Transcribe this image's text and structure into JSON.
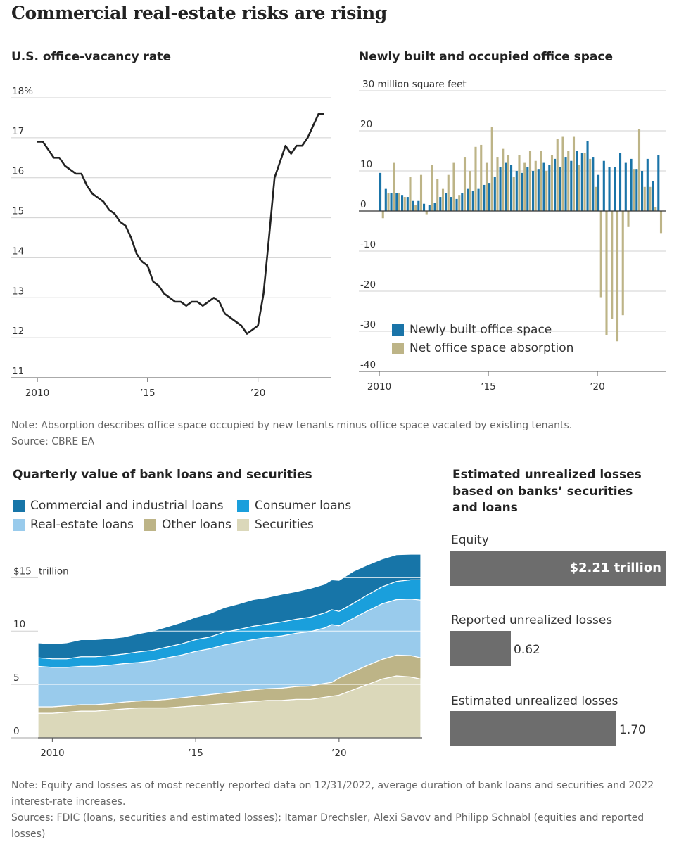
{
  "main_title": "Commercial real-estate risks are rising",
  "colors": {
    "line": "#222222",
    "built": "#1a74a8",
    "absorption": "#bdb487",
    "ci_loans": "#1775a8",
    "consumer_loans": "#1a9fdc",
    "real_estate_loans": "#99cbec",
    "other_loans": "#bdb487",
    "securities": "#dbd8ba",
    "loss_bar": "#6d6d6d",
    "grid": "#d0d0d0"
  },
  "note1": "Note: Absorption describes office space occupied by new tenants minus office space vacated by existing tenants.",
  "source1": "Source: CBRE EA",
  "note2": "Note: Equity and losses as of most recently reported data on 12/31/2022, average duration of bank loans and securities and 2022 interest-rate increases.",
  "source2": "Sources: FDIC (loans, securities and estimated losses); Itamar Drechsler, Alexi Savov and Philipp Schnabl (equities and reported losses)",
  "chart_data": [
    {
      "id": "vacancy",
      "type": "line",
      "title": "U.S. office-vacancy rate",
      "xlabel": "",
      "ylabel": "",
      "ylim": [
        11,
        18
      ],
      "xlim": [
        2010,
        2023.2
      ],
      "y_ticks": [
        11,
        12,
        13,
        14,
        15,
        16,
        17,
        18
      ],
      "y_tick_labels": [
        "11",
        "12",
        "13",
        "14",
        "15",
        "16",
        "17",
        "18%"
      ],
      "x_ticks": [
        2010,
        2015,
        2020
      ],
      "x_tick_labels": [
        "2010",
        "’15",
        "’20"
      ],
      "x": [
        2010,
        2010.25,
        2010.5,
        2010.75,
        2011,
        2011.25,
        2011.5,
        2011.75,
        2012,
        2012.25,
        2012.5,
        2012.75,
        2013,
        2013.25,
        2013.5,
        2013.75,
        2014,
        2014.25,
        2014.5,
        2014.75,
        2015,
        2015.25,
        2015.5,
        2015.75,
        2016,
        2016.25,
        2016.5,
        2016.75,
        2017,
        2017.25,
        2017.5,
        2017.75,
        2018,
        2018.25,
        2018.5,
        2018.75,
        2019,
        2019.25,
        2019.5,
        2019.75,
        2020,
        2020.25,
        2020.5,
        2020.75,
        2021,
        2021.25,
        2021.5,
        2021.75,
        2022,
        2022.25,
        2022.5,
        2022.75,
        2023
      ],
      "values": [
        16.9,
        16.9,
        16.7,
        16.5,
        16.5,
        16.3,
        16.2,
        16.1,
        16.1,
        15.8,
        15.6,
        15.5,
        15.4,
        15.2,
        15.1,
        14.9,
        14.8,
        14.5,
        14.1,
        13.9,
        13.8,
        13.4,
        13.3,
        13.1,
        13.0,
        12.9,
        12.9,
        12.8,
        12.9,
        12.9,
        12.8,
        12.9,
        13.0,
        12.9,
        12.6,
        12.5,
        12.4,
        12.3,
        12.1,
        12.2,
        12.3,
        13.1,
        14.5,
        16.0,
        16.4,
        16.8,
        16.6,
        16.8,
        16.8,
        17.0,
        17.3,
        17.6,
        17.6
      ]
    },
    {
      "id": "office-space",
      "type": "bar",
      "title": "Newly built and occupied office space",
      "unit_label": "30 million square feet",
      "ylim": [
        -40,
        30
      ],
      "y_ticks": [
        30,
        20,
        10,
        0,
        -10,
        -20,
        -30,
        -40
      ],
      "y_tick_labels": [
        "",
        "20",
        "10",
        "0",
        "-10",
        "-20",
        "-30",
        "-40"
      ],
      "x_ticks": [
        2010,
        2015,
        2020
      ],
      "x_tick_labels": [
        "2010",
        "’15",
        "’20"
      ],
      "quarters_start": 2010,
      "series": [
        {
          "name": "Newly built office space",
          "values": [
            9.5,
            5.5,
            4.5,
            4.5,
            4.0,
            3.5,
            2.5,
            2.5,
            1.8,
            1.5,
            2.0,
            3.5,
            4.5,
            3.5,
            3.0,
            4.5,
            5.5,
            5.0,
            5.5,
            6.5,
            7.0,
            8.5,
            11.0,
            12.0,
            11.5,
            10.0,
            9.5,
            11.0,
            10.0,
            10.5,
            12.0,
            11.5,
            13.0,
            11.0,
            13.5,
            12.5,
            15.0,
            14.5,
            17.5,
            13.5,
            9.0,
            12.5,
            11.0,
            11.0,
            14.5,
            12.0,
            13.0,
            10.5,
            10.0,
            13.0,
            7.5,
            14.0
          ]
        },
        {
          "name": "Net office space absorption",
          "values": [
            -1.8,
            4.5,
            12.0,
            4.5,
            3.5,
            8.5,
            1.5,
            9.0,
            -0.8,
            11.5,
            8.0,
            5.5,
            9.0,
            12.0,
            4.0,
            13.5,
            10.0,
            16.0,
            16.5,
            12.0,
            21.0,
            13.5,
            15.5,
            14.0,
            8.5,
            14.0,
            12.0,
            15.0,
            12.5,
            15.0,
            10.0,
            14.0,
            18.0,
            18.5,
            15.0,
            18.5,
            11.5,
            14.5,
            13.0,
            6.0,
            -21.5,
            -31.0,
            -27.0,
            -32.5,
            -26.0,
            -4.0,
            10.5,
            20.5,
            6.0,
            6.0,
            1.0,
            -5.5
          ]
        }
      ]
    },
    {
      "id": "bank-loans",
      "type": "area",
      "stacked": true,
      "title": "Quarterly value of bank loans and securities",
      "unit_label": "trillion",
      "ylim": [
        0,
        17
      ],
      "y_ticks": [
        0,
        5,
        10,
        15
      ],
      "y_tick_labels": [
        "0",
        "5",
        "10",
        "$15"
      ],
      "x_ticks": [
        2010,
        2015,
        2020
      ],
      "x_tick_labels": [
        "2010",
        "’15",
        "’20"
      ],
      "x": [
        2009.5,
        2010,
        2010.5,
        2011,
        2011.5,
        2012,
        2012.5,
        2013,
        2013.5,
        2014,
        2014.5,
        2015,
        2015.5,
        2016,
        2016.5,
        2017,
        2017.5,
        2018,
        2018.5,
        2019,
        2019.5,
        2019.75,
        2020,
        2020.5,
        2021,
        2021.5,
        2022,
        2022.5,
        2022.85
      ],
      "series": [
        {
          "name": "Securities",
          "values": [
            2.3,
            2.3,
            2.4,
            2.5,
            2.5,
            2.6,
            2.7,
            2.8,
            2.8,
            2.8,
            2.9,
            3.0,
            3.1,
            3.2,
            3.3,
            3.4,
            3.5,
            3.5,
            3.6,
            3.6,
            3.8,
            3.9,
            4.0,
            4.5,
            5.0,
            5.5,
            5.8,
            5.7,
            5.5
          ]
        },
        {
          "name": "Other loans",
          "values": [
            0.6,
            0.6,
            0.6,
            0.6,
            0.6,
            0.6,
            0.65,
            0.65,
            0.7,
            0.8,
            0.85,
            0.9,
            0.95,
            1.0,
            1.05,
            1.1,
            1.1,
            1.15,
            1.2,
            1.25,
            1.3,
            1.3,
            1.6,
            1.7,
            1.8,
            1.85,
            1.95,
            2.0,
            2.0
          ]
        },
        {
          "name": "Real-estate loans",
          "values": [
            3.8,
            3.7,
            3.6,
            3.6,
            3.6,
            3.6,
            3.6,
            3.6,
            3.7,
            3.9,
            4.0,
            4.2,
            4.3,
            4.5,
            4.6,
            4.7,
            4.8,
            4.9,
            5.0,
            5.1,
            5.2,
            5.4,
            4.9,
            5.0,
            5.1,
            5.2,
            5.2,
            5.3,
            5.4
          ]
        },
        {
          "name": "Consumer loans",
          "values": [
            0.8,
            0.8,
            0.8,
            0.9,
            0.9,
            0.9,
            0.9,
            1.0,
            1.0,
            1.0,
            1.05,
            1.1,
            1.1,
            1.2,
            1.2,
            1.25,
            1.25,
            1.3,
            1.3,
            1.35,
            1.4,
            1.4,
            1.35,
            1.4,
            1.5,
            1.6,
            1.7,
            1.8,
            1.9
          ]
        },
        {
          "name": "Commercial and industrial loans",
          "values": [
            1.4,
            1.4,
            1.5,
            1.6,
            1.6,
            1.6,
            1.6,
            1.7,
            1.8,
            1.9,
            2.0,
            2.1,
            2.2,
            2.3,
            2.4,
            2.5,
            2.5,
            2.6,
            2.6,
            2.7,
            2.7,
            2.8,
            2.9,
            3.0,
            2.8,
            2.6,
            2.5,
            2.4,
            2.4
          ]
        }
      ]
    },
    {
      "id": "losses",
      "type": "bar",
      "orientation": "horizontal",
      "title": "Estimated unrealized losses based on banks’ securities and loans",
      "categories": [
        "Equity",
        "Reported unrealized losses",
        "Estimated unrealized losses"
      ],
      "values": [
        2.21,
        0.62,
        1.7
      ],
      "value_labels": [
        "$2.21 trillion",
        "0.62",
        "1.70"
      ]
    }
  ]
}
